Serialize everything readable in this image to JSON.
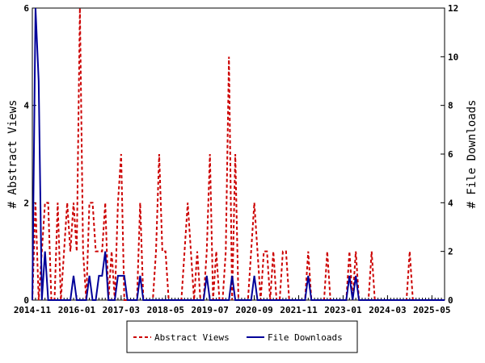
{
  "chart_data": {
    "type": "line",
    "categories": [
      "2014-11",
      null,
      null,
      null,
      null,
      null,
      null,
      null,
      null,
      null,
      null,
      null,
      null,
      null,
      "2016-01",
      null,
      null,
      null,
      null,
      null,
      null,
      null,
      null,
      null,
      null,
      null,
      null,
      null,
      "2017-03",
      null,
      null,
      null,
      null,
      null,
      null,
      null,
      null,
      null,
      null,
      null,
      null,
      null,
      "2018-05",
      null,
      null,
      null,
      null,
      null,
      null,
      null,
      null,
      null,
      null,
      null,
      null,
      null,
      "2019-07",
      null,
      null,
      null,
      null,
      null,
      null,
      null,
      null,
      null,
      null,
      null,
      null,
      null,
      "2020-09",
      null,
      null,
      null,
      null,
      null,
      null,
      null,
      null,
      null,
      null,
      null,
      null,
      null,
      "2021-11",
      null,
      null,
      null,
      null,
      null,
      null,
      null,
      null,
      null,
      null,
      null,
      null,
      null,
      "2023-01",
      null,
      null,
      null,
      null,
      null,
      null,
      null,
      null,
      null,
      null,
      null,
      null,
      null,
      "2024-03",
      null,
      null,
      null,
      null,
      null,
      null,
      null,
      null,
      null,
      null,
      null,
      null,
      null,
      "2025-05",
      null,
      null,
      null,
      null
    ],
    "series": [
      {
        "name": "Abstract Views",
        "color": "#cc0000",
        "dash": true,
        "values": [
          0,
          2,
          0,
          1,
          2,
          2,
          0,
          0,
          2,
          0,
          1,
          2,
          1,
          2,
          1,
          6,
          1,
          0,
          2,
          2,
          1,
          1,
          1,
          2,
          0,
          1,
          0,
          2,
          3,
          0,
          0,
          0,
          0,
          0,
          2,
          0,
          0,
          0,
          0,
          1,
          3,
          1,
          1,
          0,
          0,
          0,
          0,
          0,
          1,
          2,
          1,
          0,
          1,
          0,
          0,
          1,
          3,
          0,
          1,
          0,
          0,
          1,
          5,
          0,
          3,
          0,
          0,
          0,
          0,
          1,
          2,
          1,
          0,
          1,
          1,
          0,
          1,
          0,
          0,
          1,
          1,
          0,
          0,
          0,
          0,
          0,
          0,
          1,
          0,
          0,
          0,
          0,
          0,
          1,
          0,
          0,
          0,
          0,
          0,
          0,
          1,
          0,
          1,
          0,
          0,
          0,
          0,
          1,
          0,
          0,
          0,
          0,
          0,
          0,
          0,
          0,
          0,
          0,
          0,
          1,
          0,
          0,
          0,
          0,
          0,
          0,
          0,
          0,
          0,
          0,
          0
        ]
      },
      {
        "name": "File Downloads",
        "color": "#000099",
        "axis": "y2",
        "values": [
          0,
          12,
          9,
          0,
          2,
          0,
          0,
          0,
          0,
          0,
          0,
          0,
          0,
          1,
          0,
          0,
          0,
          0,
          1,
          0,
          0,
          1,
          1,
          2,
          0,
          0,
          0,
          1,
          1,
          1,
          0,
          0,
          0,
          0,
          1,
          0,
          0,
          0,
          0,
          0,
          0,
          0,
          0,
          0,
          0,
          0,
          0,
          0,
          0,
          0,
          0,
          0,
          0,
          0,
          0,
          1,
          0,
          0,
          0,
          0,
          0,
          0,
          0,
          1,
          0,
          0,
          0,
          0,
          0,
          0,
          1,
          0,
          0,
          0,
          0,
          0,
          0,
          0,
          0,
          0,
          0,
          0,
          0,
          0,
          0,
          0,
          0,
          1,
          0,
          0,
          0,
          0,
          0,
          0,
          0,
          0,
          0,
          0,
          0,
          0,
          1,
          0,
          1,
          0,
          0,
          0,
          0,
          0,
          0,
          0,
          0,
          0,
          0,
          0,
          0,
          0,
          0,
          0,
          0,
          0,
          0,
          0,
          0,
          0,
          0,
          0,
          0,
          0,
          0,
          0,
          0
        ]
      }
    ],
    "ylabel": "# Abstract Views",
    "y2label": "# File Downloads",
    "ylim": [
      0,
      6
    ],
    "yticks": [
      0,
      2,
      4,
      6
    ],
    "y2lim": [
      0,
      12
    ],
    "y2ticks": [
      0,
      2,
      4,
      6,
      8,
      10,
      12
    ],
    "legend": "bottom"
  }
}
